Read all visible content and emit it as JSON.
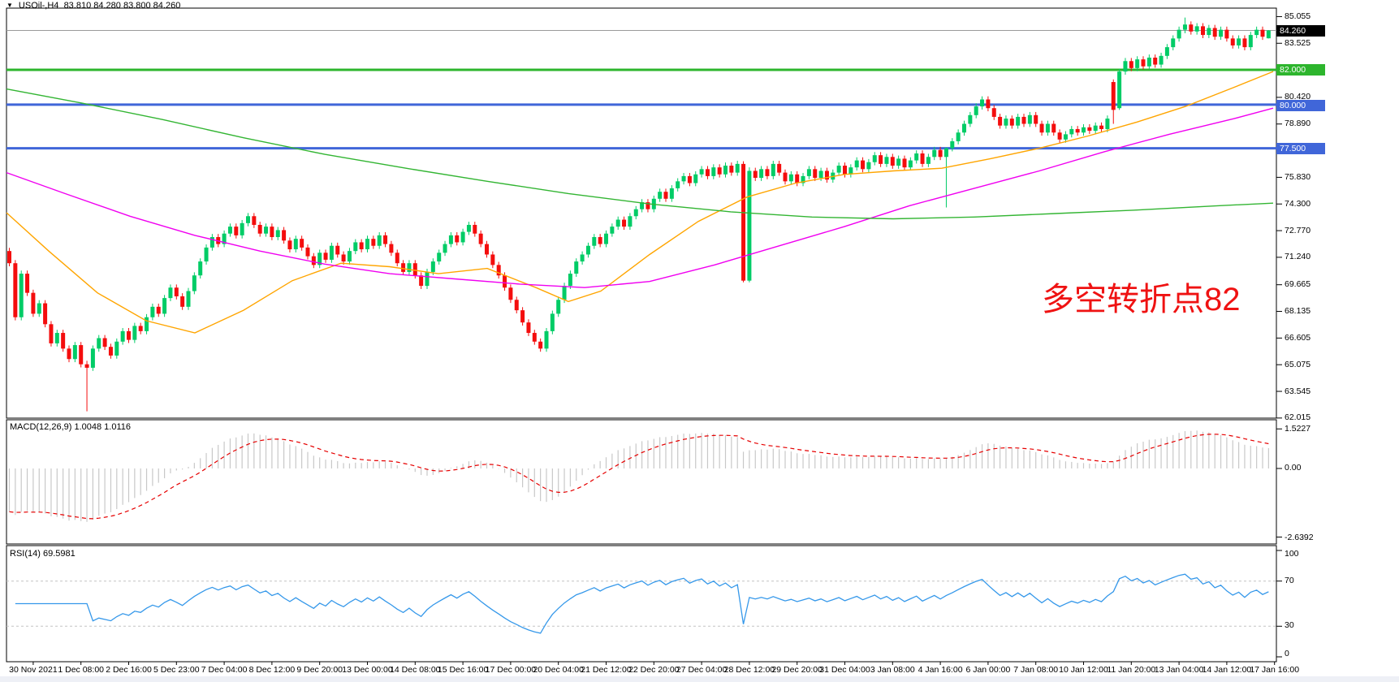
{
  "header": {
    "dropdown_icon": "▼",
    "symbol": "USOil-,H4",
    "ohlc": "83.810 84.280 83.800 84.260"
  },
  "annotation": {
    "text": "多空转折点82",
    "color": "#ef1212"
  },
  "price_axis": {
    "ticks": [
      {
        "text": "85.055",
        "price": 85.055
      },
      {
        "text": "83.525",
        "price": 83.525
      },
      {
        "text": "80.420",
        "price": 80.42
      },
      {
        "text": "78.890",
        "price": 78.89
      },
      {
        "text": "75.830",
        "price": 75.83
      },
      {
        "text": "74.300",
        "price": 74.3
      },
      {
        "text": "72.770",
        "price": 72.77
      },
      {
        "text": "71.240",
        "price": 71.24
      },
      {
        "text": "69.665",
        "price": 69.665
      },
      {
        "text": "68.135",
        "price": 68.135
      },
      {
        "text": "66.605",
        "price": 66.605
      },
      {
        "text": "65.075",
        "price": 65.075
      },
      {
        "text": "63.545",
        "price": 63.545
      },
      {
        "text": "62.015",
        "price": 62.015
      }
    ],
    "badges": {
      "current": {
        "text": "84.260",
        "price": 84.26,
        "bg": "black"
      },
      "green": {
        "text": "82.000",
        "price": 82.0,
        "bg": "green"
      },
      "blue1": {
        "text": "80.000",
        "price": 80.0,
        "bg": "blue"
      },
      "blue2": {
        "text": "77.500",
        "price": 77.5,
        "bg": "blue"
      }
    }
  },
  "macd_panel": {
    "label": "MACD(12,26,9) 1.0048 1.0116",
    "scale_top": "1.5227",
    "scale_zero": "0.00",
    "scale_bottom": "-2.6392",
    "top_value": 1.5227,
    "bottom_value": -2.6392
  },
  "rsi_panel": {
    "label": "RSI(14) 69.5981",
    "levels": [
      "100",
      "70",
      "30",
      "0"
    ],
    "level_values": [
      100,
      70,
      30,
      0
    ],
    "dashed_levels": [
      70,
      30
    ]
  },
  "time_axis": {
    "labels": [
      "30 Nov 2021",
      "1 Dec 08:00",
      "2 Dec 16:00",
      "5 Dec 23:00",
      "7 Dec 04:00",
      "8 Dec 12:00",
      "9 Dec 20:00",
      "13 Dec 00:00",
      "14 Dec 08:00",
      "15 Dec 16:00",
      "17 Dec 00:00",
      "20 Dec 04:00",
      "21 Dec 12:00",
      "22 Dec 20:00",
      "27 Dec 04:00",
      "28 Dec 12:00",
      "29 Dec 20:00",
      "31 Dec 04:00",
      "3 Jan 08:00",
      "4 Jan 16:00",
      "6 Jan 00:00",
      "7 Jan 08:00",
      "10 Jan 12:00",
      "11 Jan 20:00",
      "13 Jan 04:00",
      "14 Jan 12:00",
      "17 Jan 16:00"
    ],
    "bars_per_label": 8
  },
  "colors": {
    "bull": "#00cc66",
    "bear": "#f40d0d",
    "ma_fast": "#ffa500",
    "ma_mid": "#f000f0",
    "ma_slow": "#33b533",
    "hline_green": "#2db52d",
    "hline_blue": "#4066d9",
    "price_line": "#9a9a9a",
    "macd_hist": "#c8c8c8",
    "macd_signal": "#e60000",
    "rsi_line": "#3598ea",
    "level_dash": "#c3c3c3",
    "panel_border": "#000000"
  },
  "chart_data": {
    "type": "candlestick+indicators",
    "symbol": "USOil-",
    "timeframe": "H4",
    "current_price": 84.26,
    "last_bar": {
      "open": 83.81,
      "high": 84.28,
      "low": 83.8,
      "close": 84.26
    },
    "price_range_visible": [
      62.015,
      85.055
    ],
    "hlines": [
      {
        "price": 82.0,
        "color_key": "hline_green",
        "width": 3
      },
      {
        "price": 80.0,
        "color_key": "hline_blue",
        "width": 3
      },
      {
        "price": 77.5,
        "color_key": "hline_blue",
        "width": 3
      }
    ],
    "candles": {
      "first_open": 71.6,
      "default_wick": 0.18,
      "closes": [
        70.9,
        67.8,
        70.3,
        69.2,
        68.0,
        68.6,
        67.4,
        66.3,
        66.9,
        66.0,
        65.4,
        66.2,
        65.1,
        64.9,
        66.0,
        66.6,
        66.1,
        65.6,
        66.4,
        67.0,
        66.5,
        67.3,
        67.0,
        67.8,
        68.4,
        68.0,
        68.9,
        69.5,
        69.0,
        68.4,
        69.3,
        70.2,
        71.0,
        71.8,
        72.4,
        72.0,
        72.6,
        73.0,
        72.5,
        73.2,
        73.6,
        73.1,
        72.6,
        73.0,
        72.4,
        72.8,
        72.2,
        71.7,
        72.3,
        71.8,
        71.3,
        70.8,
        71.5,
        71.1,
        71.9,
        71.4,
        71.0,
        71.6,
        72.1,
        71.7,
        72.3,
        71.9,
        72.5,
        72.0,
        71.5,
        70.9,
        70.4,
        70.9,
        70.2,
        69.6,
        70.4,
        71.0,
        71.5,
        72.0,
        72.5,
        72.1,
        72.7,
        73.1,
        72.6,
        72.0,
        71.4,
        70.8,
        70.2,
        69.5,
        68.8,
        68.2,
        67.5,
        66.9,
        66.4,
        66.0,
        67.0,
        68.0,
        68.8,
        69.6,
        70.3,
        71.0,
        71.4,
        71.9,
        72.4,
        72.0,
        72.6,
        73.0,
        73.4,
        73.0,
        73.6,
        74.0,
        74.4,
        74.0,
        74.6,
        75.0,
        74.6,
        75.2,
        75.6,
        75.9,
        75.5,
        76.0,
        76.3,
        75.9,
        76.4,
        76.0,
        76.5,
        76.1,
        76.6,
        69.9,
        76.2,
        75.8,
        76.3,
        75.9,
        76.6,
        76.1,
        75.6,
        76.0,
        75.5,
        75.9,
        76.3,
        75.8,
        76.2,
        75.7,
        76.1,
        76.5,
        76.0,
        76.4,
        76.8,
        76.3,
        76.7,
        77.1,
        76.6,
        77.0,
        76.5,
        76.9,
        76.4,
        76.8,
        77.2,
        76.6,
        77.0,
        77.4,
        77.0,
        77.5,
        77.9,
        78.4,
        78.9,
        79.4,
        79.9,
        80.3,
        79.8,
        79.3,
        78.8,
        79.2,
        78.8,
        79.3,
        78.9,
        79.4,
        78.9,
        78.4,
        78.9,
        78.4,
        78.0,
        78.3,
        78.6,
        78.4,
        78.7,
        78.5,
        78.8,
        78.6,
        79.2,
        79.7,
        81.9,
        82.5,
        82.1,
        82.6,
        82.2,
        82.7,
        82.3,
        82.8,
        83.3,
        83.8,
        84.3,
        84.6,
        84.2,
        84.5,
        84.0,
        84.4,
        83.9,
        84.3,
        83.8,
        83.4,
        83.8,
        83.3,
        84.0,
        84.3,
        83.9,
        84.26
      ],
      "overrides": {
        "13": [
          65.1,
          65.3,
          62.4,
          64.9
        ],
        "123": [
          76.6,
          76.75,
          69.8,
          69.9
        ],
        "124": [
          69.9,
          76.4,
          69.8,
          76.2
        ],
        "157": [
          77.0,
          77.55,
          74.1,
          77.5
        ],
        "185": [
          81.3,
          81.45,
          78.9,
          79.7
        ],
        "186": [
          79.8,
          82.05,
          79.7,
          81.9
        ],
        "197": [
          84.3,
          85.0,
          84.1,
          84.6
        ],
        "211": [
          83.81,
          84.28,
          83.8,
          84.26
        ]
      }
    },
    "moving_averages": [
      {
        "name": "ma-fast-orange",
        "color_key": "ma_fast",
        "points": [
          [
            8,
            73.8
          ],
          [
            60,
            71.6
          ],
          [
            120,
            69.2
          ],
          [
            180,
            67.6
          ],
          [
            240,
            66.9
          ],
          [
            300,
            68.2
          ],
          [
            360,
            69.9
          ],
          [
            420,
            70.9
          ],
          [
            480,
            70.7
          ],
          [
            540,
            70.3
          ],
          [
            600,
            70.6
          ],
          [
            660,
            69.5
          ],
          [
            700,
            68.7
          ],
          [
            740,
            69.3
          ],
          [
            800,
            71.4
          ],
          [
            860,
            73.3
          ],
          [
            920,
            74.7
          ],
          [
            980,
            75.5
          ],
          [
            1040,
            76.0
          ],
          [
            1100,
            76.2
          ],
          [
            1160,
            76.35
          ],
          [
            1220,
            76.9
          ],
          [
            1280,
            77.5
          ],
          [
            1340,
            78.2
          ],
          [
            1400,
            79.0
          ],
          [
            1460,
            79.9
          ],
          [
            1520,
            81.0
          ],
          [
            1568,
            81.9
          ]
        ]
      },
      {
        "name": "ma-mid-magenta",
        "color_key": "ma_mid",
        "points": [
          [
            8,
            76.1
          ],
          [
            80,
            74.9
          ],
          [
            160,
            73.6
          ],
          [
            240,
            72.5
          ],
          [
            320,
            71.6
          ],
          [
            400,
            70.85
          ],
          [
            480,
            70.3
          ],
          [
            560,
            70.0
          ],
          [
            640,
            69.7
          ],
          [
            720,
            69.5
          ],
          [
            800,
            69.85
          ],
          [
            880,
            70.8
          ],
          [
            960,
            71.9
          ],
          [
            1040,
            73.0
          ],
          [
            1120,
            74.2
          ],
          [
            1200,
            75.2
          ],
          [
            1280,
            76.2
          ],
          [
            1360,
            77.3
          ],
          [
            1440,
            78.3
          ],
          [
            1520,
            79.2
          ],
          [
            1568,
            79.8
          ]
        ]
      },
      {
        "name": "ma-slow-green",
        "color_key": "ma_slow",
        "points": [
          [
            8,
            80.9
          ],
          [
            100,
            80.1
          ],
          [
            200,
            79.15
          ],
          [
            300,
            78.1
          ],
          [
            400,
            77.15
          ],
          [
            500,
            76.35
          ],
          [
            600,
            75.6
          ],
          [
            700,
            74.9
          ],
          [
            800,
            74.3
          ],
          [
            900,
            73.85
          ],
          [
            1000,
            73.55
          ],
          [
            1100,
            73.45
          ],
          [
            1200,
            73.55
          ],
          [
            1300,
            73.75
          ],
          [
            1400,
            73.95
          ],
          [
            1500,
            74.2
          ],
          [
            1568,
            74.35
          ]
        ]
      }
    ],
    "indicators": {
      "macd": {
        "fast": 12,
        "slow": 26,
        "signal": 9,
        "warmup_bias": 1.8,
        "shown_values": [
          1.0048,
          1.0116
        ]
      },
      "rsi": {
        "period": 14,
        "shown_value": 69.5981
      }
    }
  }
}
